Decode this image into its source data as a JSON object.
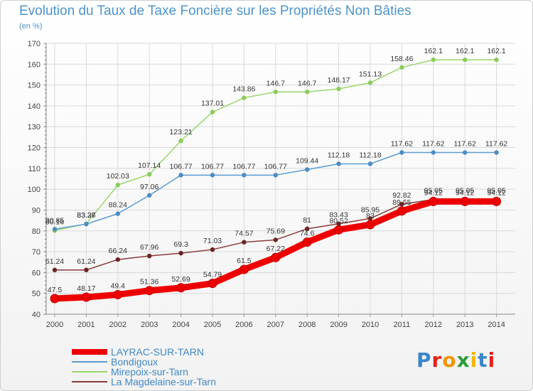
{
  "title": "Evolution du Taux de Taxe Foncière sur les Propriétés Non Bâties",
  "subtitle": "(en %)",
  "logo": {
    "text": "Proxiti",
    "letter_colors": [
      "#3a86c8",
      "#e3231b",
      "#f39200",
      "#2a9d3a",
      "#f2b705",
      "#3a86c8",
      "#e3231b"
    ]
  },
  "chart_data": {
    "type": "line",
    "x": [
      "2000",
      "2001",
      "2002",
      "2003",
      "2004",
      "2005",
      "2006",
      "2007",
      "2008",
      "2009",
      "2010",
      "2011",
      "2012",
      "2013",
      "2014"
    ],
    "ylim": [
      40,
      170
    ],
    "yticks": [
      40,
      50,
      60,
      70,
      80,
      90,
      100,
      110,
      120,
      130,
      140,
      150,
      160,
      170
    ],
    "grid": true,
    "legend_position": "bottom-left",
    "series": [
      {
        "name": "LAYRAC-SUR-TARN",
        "color": "#ee0000",
        "marker_color": "#ee0000",
        "values": [
          47.5,
          48.17,
          49.4,
          51.36,
          52.69,
          54.79,
          61.5,
          67.22,
          74.6,
          80.52,
          83.0,
          89.55,
          94.12,
          94.12,
          94.12
        ],
        "labels": [
          "47.5",
          "48.17",
          "49.4",
          "51.36",
          "52.69",
          "54.79",
          "61.5",
          "67.22",
          "74.6",
          "80.52",
          "83",
          "89.55",
          "94.12",
          "94.12",
          "94.12"
        ]
      },
      {
        "name": "Bondigoux",
        "color": "#5b9bd0",
        "marker_color": "#4a8cc6",
        "values": [
          80.85,
          83.27,
          88.24,
          97.06,
          106.77,
          106.77,
          106.77,
          106.77,
          109.44,
          112.18,
          112.18,
          117.62,
          117.62,
          117.62,
          117.62
        ],
        "labels": [
          "80.85",
          "83.27",
          "88.24",
          "97.06",
          "106.77",
          "106.77",
          "106.77",
          "106.77",
          "109.44",
          "112.18",
          "112.18",
          "117.62",
          "117.62",
          "117.62",
          "117.62"
        ]
      },
      {
        "name": "Mirepoix-sur-Tarn",
        "color": "#99d66a",
        "marker_color": "#8ccc5a",
        "values": [
          80.16,
          83.36,
          102.03,
          107.14,
          123.21,
          137.01,
          143.86,
          146.7,
          146.7,
          148.17,
          151.13,
          158.46,
          162.1,
          162.1,
          162.1
        ],
        "labels": [
          "80.16",
          "83.36",
          "102.03",
          "107.14",
          "123.21",
          "137.01",
          "143.86",
          "146.7",
          "146.7",
          "148.17",
          "151.13",
          "158.46",
          "162.1",
          "162.1",
          "162.1"
        ]
      },
      {
        "name": "La Magdelaine-sur-Tarn",
        "color": "#8a3a3a",
        "marker_color": "#6e2222",
        "values": [
          61.24,
          61.24,
          66.24,
          67.96,
          69.3,
          71.03,
          74.57,
          75.69,
          81.0,
          83.43,
          85.95,
          92.82,
          95.05,
          95.05,
          95.05
        ],
        "labels": [
          "61.24",
          "61.24",
          "66.24",
          "67.96",
          "69.3",
          "71.03",
          "74.57",
          "75.69",
          "81",
          "83.43",
          "85.95",
          "92.82",
          "95.05",
          "95.05",
          "95.05"
        ]
      }
    ]
  }
}
